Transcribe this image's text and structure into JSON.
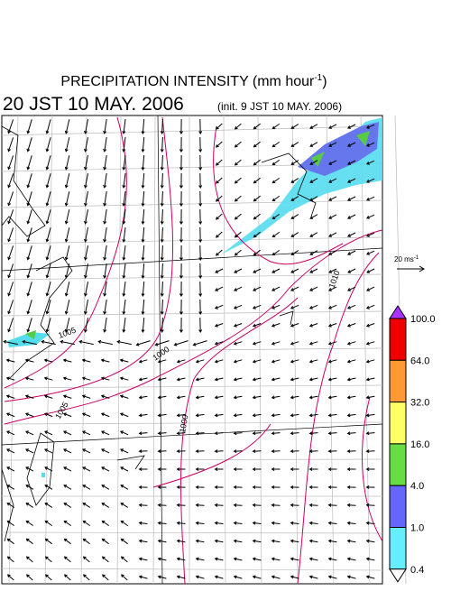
{
  "header": {
    "title": "PRECIPITATION INTENSITY (mm hour",
    "title_sup": "-1",
    "title_end": ")",
    "valid_time": "20 JST 10 MAY. 2006",
    "init_time": "(init. 9 JST 10 MAY. 2006)"
  },
  "vector_key": {
    "label": "20 ms",
    "label_sup": "-1"
  },
  "colorbar": {
    "labels": [
      "100.0",
      "64.0",
      "32.0",
      "16.0",
      "4.0",
      "1.0",
      "0.4"
    ],
    "colors": [
      "#ee0000",
      "#ff9933",
      "#ffff66",
      "#66dd44",
      "#6666ff",
      "#66eeff"
    ],
    "over_color": "#aa33ff"
  },
  "isobar_labels": [
    "1005",
    "1000",
    "1005",
    "1000",
    "1010"
  ]
}
